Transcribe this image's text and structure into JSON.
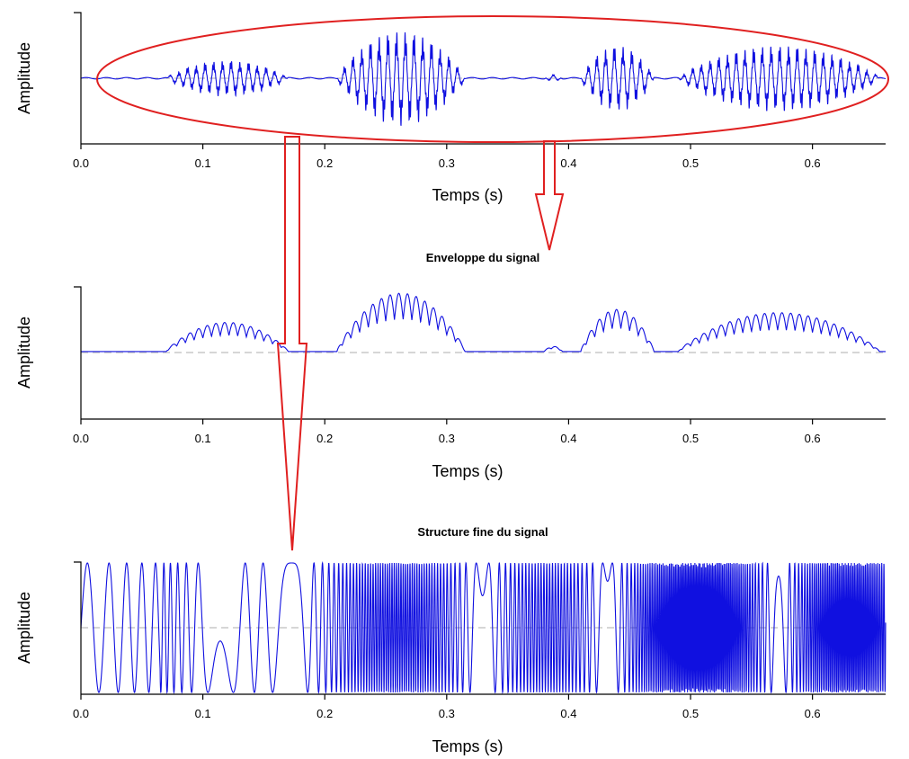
{
  "chart_data": [
    {
      "type": "line",
      "panel": "signal",
      "title": "",
      "xlabel": "Temps (s)",
      "ylabel": "Amplitude",
      "xlim": [
        0.0,
        0.66
      ],
      "xticks": [
        0.0,
        0.1,
        0.2,
        0.3,
        0.4,
        0.5,
        0.6
      ],
      "xtick_labels": [
        "0.0",
        "0.1",
        "0.2",
        "0.3",
        "0.4",
        "0.5",
        "0.6"
      ],
      "ylim": [
        -1,
        1
      ],
      "zero_line": "dashed",
      "line_color": "#1010e0",
      "segments": [
        {
          "start": 0.07,
          "end": 0.17,
          "peak": 0.28
        },
        {
          "start": 0.21,
          "end": 0.315,
          "peak": 0.75
        },
        {
          "start": 0.38,
          "end": 0.395,
          "peak": 0.05
        },
        {
          "start": 0.41,
          "end": 0.47,
          "peak": 0.52
        },
        {
          "start": 0.49,
          "end": 0.655,
          "peak": 0.52
        }
      ]
    },
    {
      "type": "line",
      "panel": "envelope",
      "title": "Enveloppe du signal",
      "xlabel": "Temps (s)",
      "ylabel": "Amplitude",
      "xlim": [
        0.0,
        0.66
      ],
      "xticks": [
        0.0,
        0.1,
        0.2,
        0.3,
        0.4,
        0.5,
        0.6
      ],
      "xtick_labels": [
        "0.0",
        "0.1",
        "0.2",
        "0.3",
        "0.4",
        "0.5",
        "0.6"
      ],
      "ylim": [
        -1,
        1
      ],
      "zero_line": "dashed",
      "line_color": "#1010e0",
      "segments": [
        {
          "start": 0.07,
          "end": 0.17,
          "peak": 0.45
        },
        {
          "start": 0.21,
          "end": 0.315,
          "peak": 0.9
        },
        {
          "start": 0.38,
          "end": 0.395,
          "peak": 0.08
        },
        {
          "start": 0.41,
          "end": 0.47,
          "peak": 0.65
        },
        {
          "start": 0.49,
          "end": 0.655,
          "peak": 0.6
        }
      ]
    },
    {
      "type": "line",
      "panel": "fine-structure",
      "title": "Structure fine du signal",
      "xlabel": "Temps (s)",
      "ylabel": "Amplitude",
      "xlim": [
        0.0,
        0.66
      ],
      "xticks": [
        0.0,
        0.1,
        0.2,
        0.3,
        0.4,
        0.5,
        0.6
      ],
      "xtick_labels": [
        "0.0",
        "0.1",
        "0.2",
        "0.3",
        "0.4",
        "0.5",
        "0.6"
      ],
      "ylim": [
        -1,
        1
      ],
      "zero_line": "dashed",
      "line_color": "#1010e0",
      "segments": [
        {
          "start": 0.0,
          "end": 0.66,
          "peak": 1.0
        }
      ]
    }
  ],
  "colors": {
    "signal": "#1010e0",
    "annotation": "#e02020",
    "zero_line": "#c8c8c8",
    "axis": "#000000"
  }
}
